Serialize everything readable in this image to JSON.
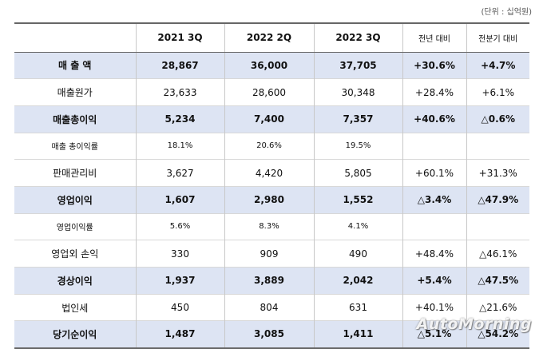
{
  "unit_label": "(단위 : 십억원)",
  "headers": [
    "",
    "2021 3Q",
    "2022 2Q",
    "2022 3Q",
    "전년 대비",
    "전분기 대비"
  ],
  "rows": [
    {
      "label": "매 출 액",
      "v1": "28,867",
      "v2": "36,000",
      "v3": "37,705",
      "yoy": "+30.6%",
      "qoq": "+4.7%",
      "highlight": true
    },
    {
      "label": "매출원가",
      "v1": "23,633",
      "v2": "28,600",
      "v3": "30,348",
      "yoy": "+28.4%",
      "qoq": "+6.1%",
      "highlight": false
    },
    {
      "label": "매출총이익",
      "v1": "5,234",
      "v2": "7,400",
      "v3": "7,357",
      "yoy": "+40.6%",
      "qoq": "△0.6%",
      "highlight": true
    },
    {
      "label": "매출 총이익률",
      "v1": "18.1%",
      "v2": "20.6%",
      "v3": "19.5%",
      "yoy": "",
      "qoq": "",
      "highlight": false,
      "small": true
    },
    {
      "label": "판매관리비",
      "v1": "3,627",
      "v2": "4,420",
      "v3": "5,805",
      "yoy": "+60.1%",
      "qoq": "+31.3%",
      "highlight": false
    },
    {
      "label": "영업이익",
      "v1": "1,607",
      "v2": "2,980",
      "v3": "1,552",
      "yoy": "△3.4%",
      "qoq": "△47.9%",
      "highlight": true
    },
    {
      "label": "영업이익률",
      "v1": "5.6%",
      "v2": "8.3%",
      "v3": "4.1%",
      "yoy": "",
      "qoq": "",
      "highlight": false,
      "small": true
    },
    {
      "label": "영업외 손익",
      "v1": "330",
      "v2": "909",
      "v3": "490",
      "yoy": "+48.4%",
      "qoq": "△46.1%",
      "highlight": false
    },
    {
      "label": "경상이익",
      "v1": "1,937",
      "v2": "3,889",
      "v3": "2,042",
      "yoy": "+5.4%",
      "qoq": "△47.5%",
      "highlight": true
    },
    {
      "label": "법인세",
      "v1": "450",
      "v2": "804",
      "v3": "631",
      "yoy": "+40.1%",
      "qoq": "△21.6%",
      "highlight": false
    },
    {
      "label": "당기순이익",
      "v1": "1,487",
      "v2": "3,085",
      "v3": "1,411",
      "yoy": "△5.1%",
      "qoq": "△54.2%",
      "highlight": true
    }
  ],
  "watermark": "AutoMorning"
}
